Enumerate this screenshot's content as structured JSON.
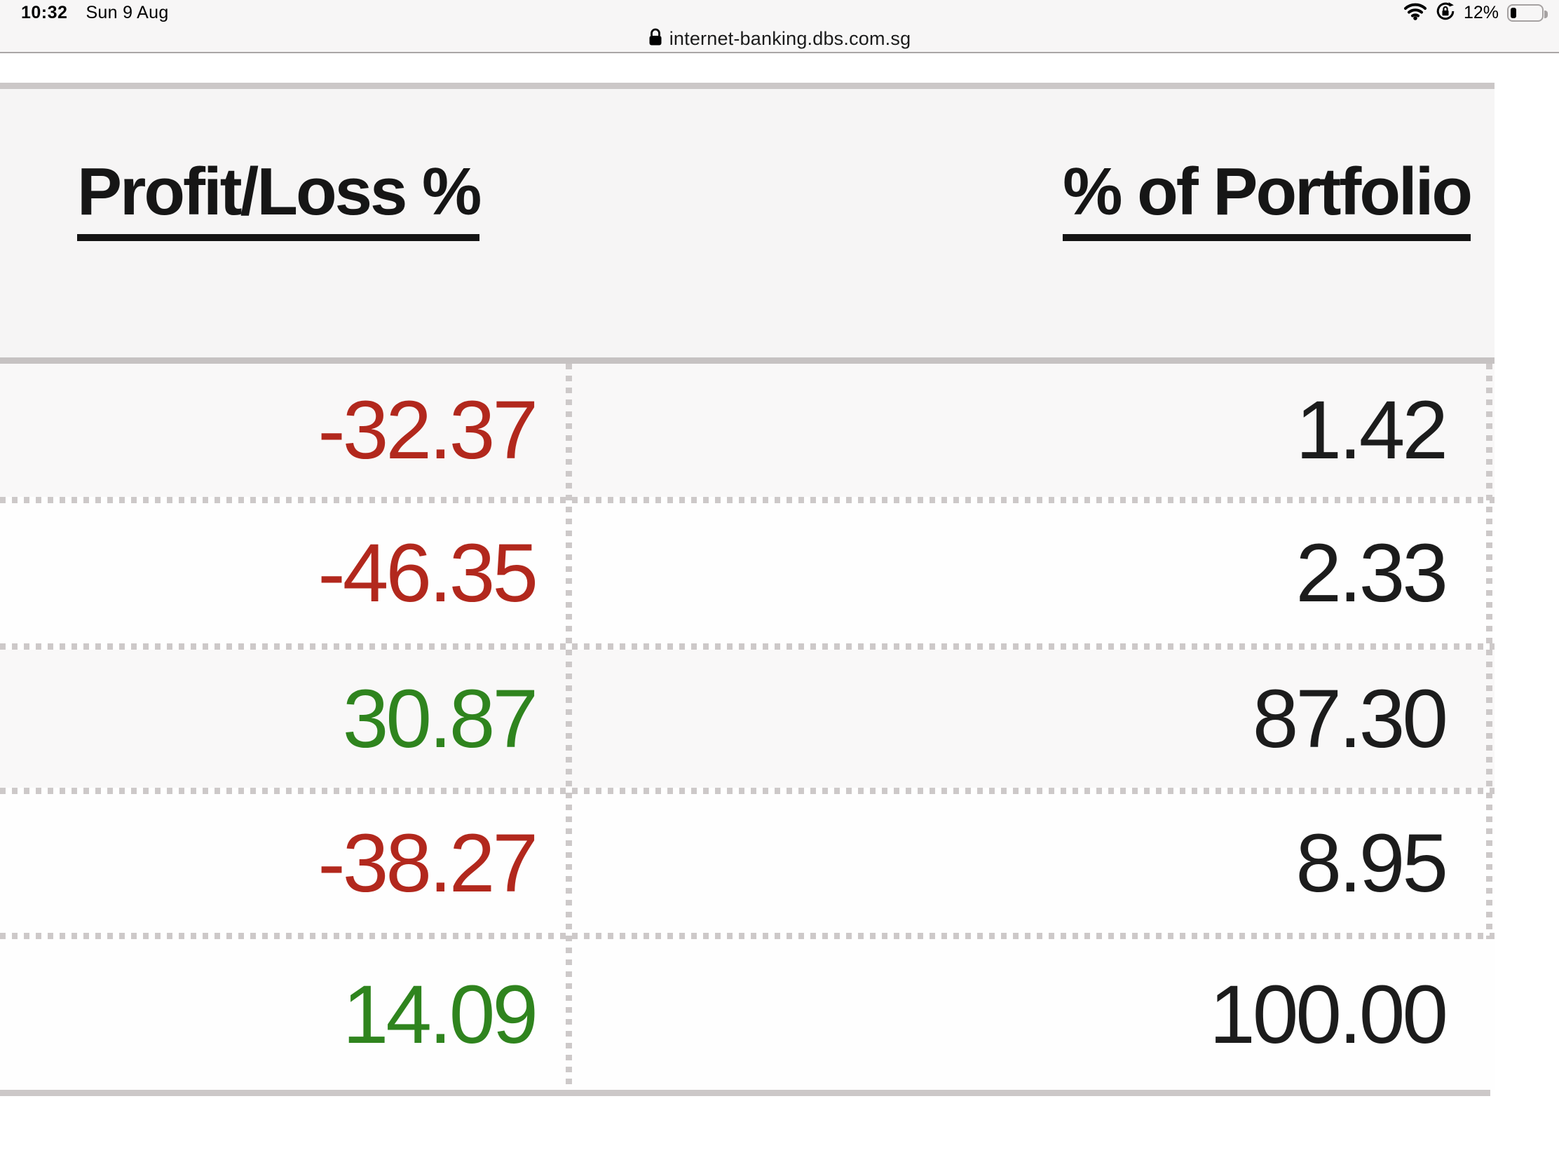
{
  "status_bar": {
    "time": "10:32",
    "date": "Sun 9 Aug",
    "battery_percent": "12%"
  },
  "browser": {
    "url": "internet-banking.dbs.com.sg"
  },
  "table": {
    "headers": [
      {
        "label": "Profit/Loss %"
      },
      {
        "label": "% of Portfolio"
      }
    ],
    "rows": [
      {
        "profit_loss_pct": "-32.37",
        "pct_of_portfolio": "1.42",
        "trend": "negative"
      },
      {
        "profit_loss_pct": "-46.35",
        "pct_of_portfolio": "2.33",
        "trend": "negative"
      },
      {
        "profit_loss_pct": "30.87",
        "pct_of_portfolio": "87.30",
        "trend": "positive"
      },
      {
        "profit_loss_pct": "-38.27",
        "pct_of_portfolio": "8.95",
        "trend": "negative"
      },
      {
        "profit_loss_pct": "14.09",
        "pct_of_portfolio": "100.00",
        "trend": "positive"
      }
    ],
    "colors": {
      "negative": "#b2281d",
      "positive": "#2f841e",
      "neutral": "#1c1c1c"
    }
  }
}
